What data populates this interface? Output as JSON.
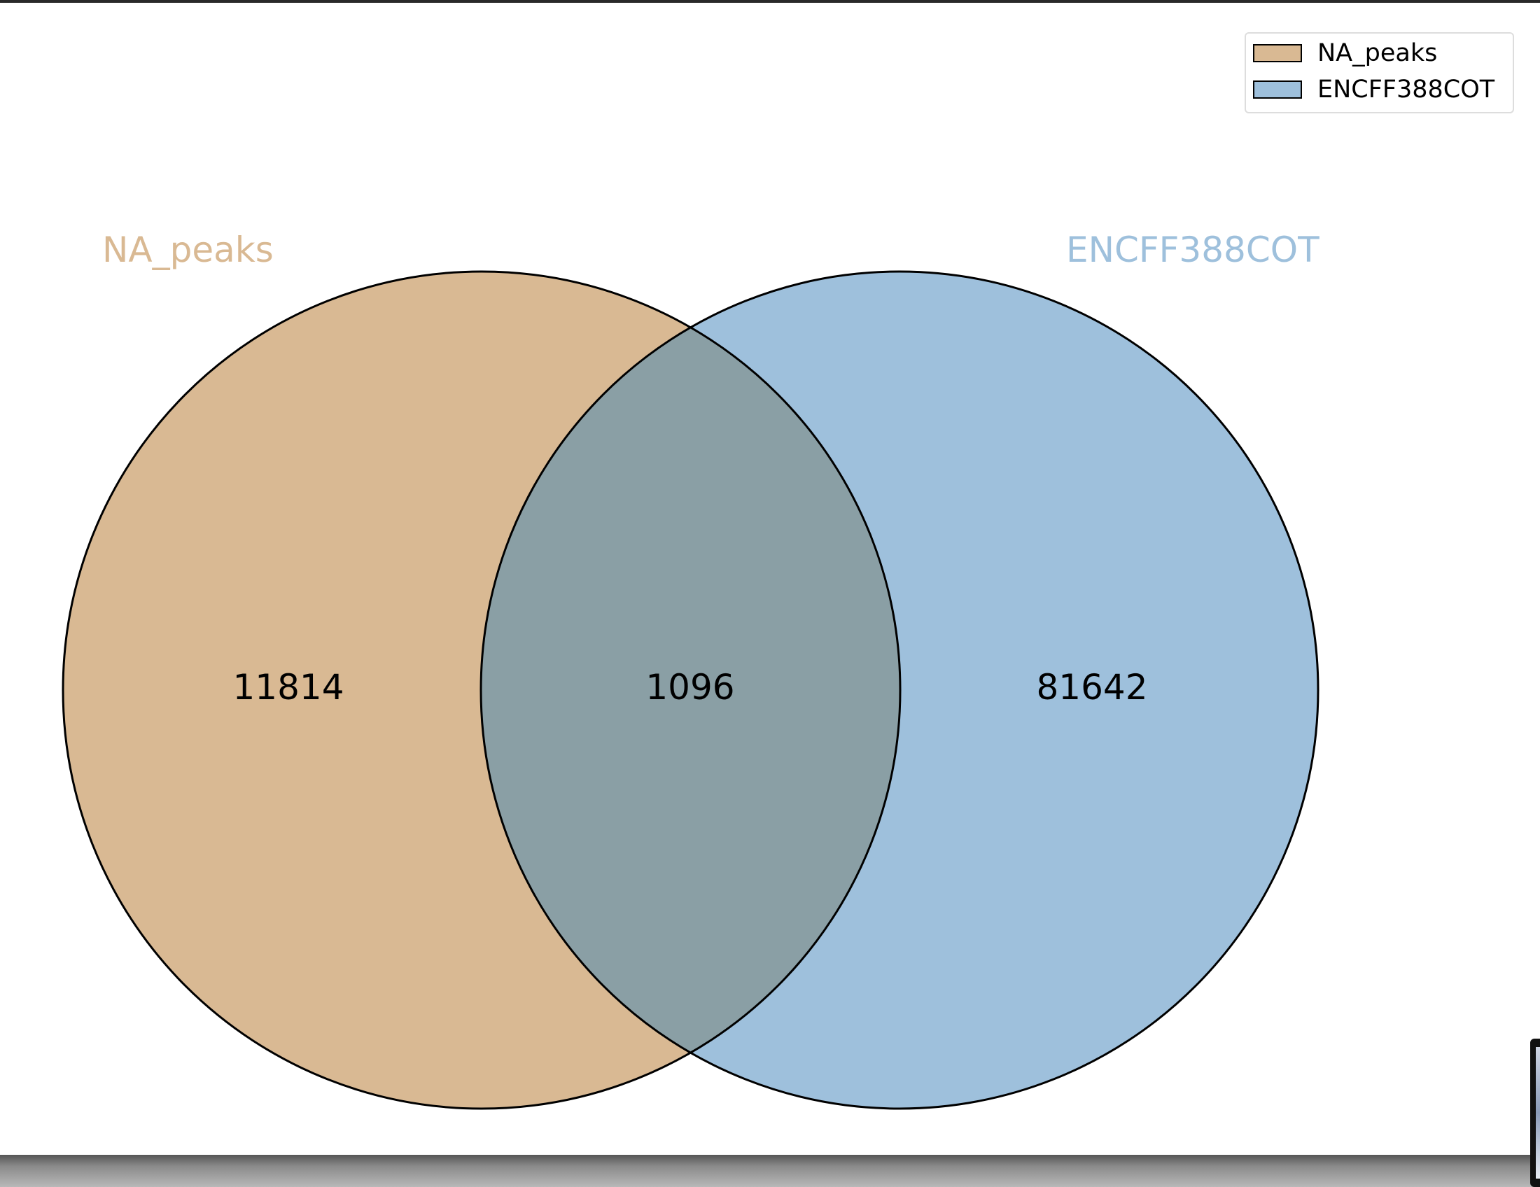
{
  "sets": [
    {
      "name": "NA_peaks",
      "color": "#d9b993"
    },
    {
      "name": "ENCFF388COT",
      "color": "#9ec0dc"
    }
  ],
  "regions": {
    "only_a": "11814",
    "intersection": "1096",
    "only_b": "81642"
  },
  "overlap_color": "#8a9fa5",
  "legend": {
    "placement": "top-right",
    "items": [
      {
        "label": "NA_peaks",
        "color": "#d9b993"
      },
      {
        "label": "ENCFF388COT",
        "color": "#9ec0dc"
      }
    ]
  }
}
